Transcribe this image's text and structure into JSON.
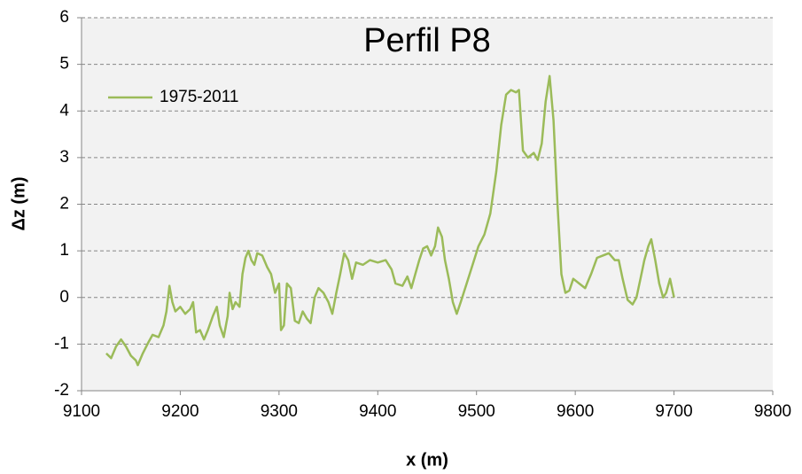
{
  "chart_data": {
    "type": "line",
    "title": "Perfil P8",
    "xlabel": "x (m)",
    "ylabel": "Δz (m)",
    "x": [
      9125,
      9130,
      9135,
      9140,
      9145,
      9150,
      9155,
      9157,
      9162,
      9168,
      9172,
      9178,
      9183,
      9186,
      9189,
      9192,
      9195,
      9200,
      9205,
      9210,
      9213,
      9216,
      9220,
      9224,
      9228,
      9233,
      9237,
      9240,
      9244,
      9248,
      9250,
      9253,
      9256,
      9260,
      9263,
      9266,
      9269,
      9272,
      9275,
      9278,
      9283,
      9288,
      9292,
      9296,
      9300,
      9302,
      9305,
      9308,
      9312,
      9316,
      9320,
      9324,
      9328,
      9332,
      9336,
      9340,
      9345,
      9350,
      9354,
      9358,
      9362,
      9366,
      9370,
      9374,
      9378,
      9385,
      9392,
      9400,
      9408,
      9414,
      9418,
      9425,
      9430,
      9434,
      9438,
      9442,
      9446,
      9450,
      9454,
      9458,
      9461,
      9465,
      9468,
      9472,
      9476,
      9480,
      9484,
      9490,
      9496,
      9502,
      9508,
      9514,
      9520,
      9525,
      9530,
      9535,
      9540,
      9543,
      9547,
      9552,
      9558,
      9562,
      9566,
      9570,
      9574,
      9578,
      9582,
      9586,
      9590,
      9594,
      9598,
      9604,
      9610,
      9616,
      9622,
      9628,
      9634,
      9640,
      9644,
      9648,
      9653,
      9658,
      9662,
      9666,
      9670,
      9674,
      9677,
      9681,
      9685,
      9689,
      9692,
      9696,
      9700
    ],
    "series": [
      {
        "name": "1975-2011",
        "color": "#9bbb59",
        "values": [
          -1.2,
          -1.3,
          -1.05,
          -0.9,
          -1.05,
          -1.25,
          -1.35,
          -1.45,
          -1.2,
          -0.95,
          -0.8,
          -0.85,
          -0.6,
          -0.3,
          0.25,
          -0.1,
          -0.3,
          -0.2,
          -0.35,
          -0.25,
          -0.1,
          -0.75,
          -0.7,
          -0.9,
          -0.7,
          -0.4,
          -0.2,
          -0.6,
          -0.85,
          -0.4,
          0.1,
          -0.25,
          -0.1,
          -0.2,
          0.5,
          0.85,
          1.0,
          0.8,
          0.7,
          0.95,
          0.9,
          0.65,
          0.5,
          0.1,
          0.3,
          -0.7,
          -0.6,
          0.3,
          0.2,
          -0.5,
          -0.55,
          -0.3,
          -0.45,
          -0.55,
          0.0,
          0.2,
          0.1,
          -0.1,
          -0.35,
          0.1,
          0.5,
          0.95,
          0.8,
          0.4,
          0.75,
          0.7,
          0.8,
          0.75,
          0.8,
          0.6,
          0.3,
          0.25,
          0.45,
          0.2,
          0.5,
          0.8,
          1.05,
          1.1,
          0.9,
          1.1,
          1.5,
          1.3,
          0.8,
          0.4,
          -0.1,
          -0.35,
          -0.1,
          0.3,
          0.7,
          1.1,
          1.35,
          1.8,
          2.7,
          3.7,
          4.35,
          4.45,
          4.4,
          4.45,
          3.15,
          3.0,
          3.1,
          2.95,
          3.3,
          4.2,
          4.75,
          3.8,
          2.0,
          0.5,
          0.1,
          0.15,
          0.4,
          0.3,
          0.2,
          0.5,
          0.85,
          0.9,
          0.95,
          0.8,
          0.8,
          0.4,
          -0.05,
          -0.15,
          0.0,
          0.4,
          0.8,
          1.1,
          1.25,
          0.8,
          0.3,
          0.0,
          0.1,
          0.4,
          0.0
        ]
      }
    ],
    "xlim": [
      9100,
      9800
    ],
    "xticks": [
      9100,
      9200,
      9300,
      9400,
      9500,
      9600,
      9700,
      9800
    ],
    "ylim": [
      -2,
      6
    ],
    "yticks": [
      -2,
      -1,
      0,
      1,
      2,
      3,
      4,
      5,
      6
    ],
    "grid": true,
    "legend": "upper left"
  }
}
